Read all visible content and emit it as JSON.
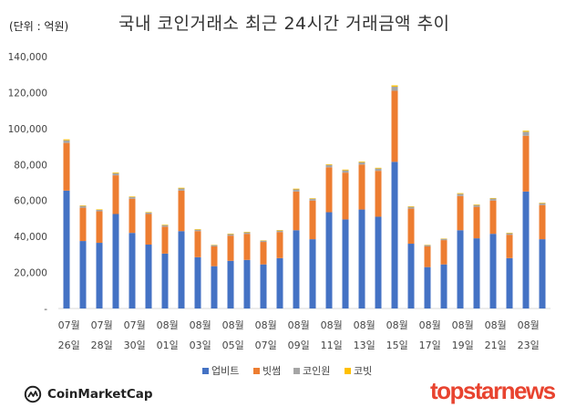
{
  "header": {
    "unit_label": "(단위 : 억원)",
    "title": "국내 코인거래소 최근 24시간 거래금액 추이"
  },
  "footer": {
    "coinmarketcap_label": "CoinMarketCap",
    "topstarnews_label": "topstarnews"
  },
  "chart_data": {
    "type": "bar",
    "stacked": true,
    "title": "국내 코인거래소 최근 24시간 거래금액 추이",
    "unit": "(단위 : 억원)",
    "categories": [
      "07월 26일",
      "07월 27일",
      "07월 28일",
      "07월 29일",
      "07월 30일",
      "07월 31일",
      "08월 01일",
      "08월 02일",
      "08월 03일",
      "08월 04일",
      "08월 05일",
      "08월 06일",
      "08월 07일",
      "08월 08일",
      "08월 09일",
      "08월 10일",
      "08월 11일",
      "08월 12일",
      "08월 13일",
      "08월 14일",
      "08월 15일",
      "08월 16일",
      "08월 17일",
      "08월 18일",
      "08월 19일",
      "08월 20일",
      "08월 21일",
      "08월 22일",
      "08월 23일",
      "08월 24일"
    ],
    "x_tick_labels": [
      {
        "month": "07월",
        "day": "26일"
      },
      {
        "month": "07월",
        "day": "28일"
      },
      {
        "month": "07월",
        "day": "30일"
      },
      {
        "month": "08월",
        "day": "01일"
      },
      {
        "month": "08월",
        "day": "03일"
      },
      {
        "month": "08월",
        "day": "05일"
      },
      {
        "month": "08월",
        "day": "07일"
      },
      {
        "month": "08월",
        "day": "09일"
      },
      {
        "month": "08월",
        "day": "11일"
      },
      {
        "month": "08월",
        "day": "13일"
      },
      {
        "month": "08월",
        "day": "15일"
      },
      {
        "month": "08월",
        "day": "17일"
      },
      {
        "month": "08월",
        "day": "19일"
      },
      {
        "month": "08월",
        "day": "21일"
      },
      {
        "month": "08월",
        "day": "23일"
      }
    ],
    "series": [
      {
        "name": "업비트",
        "color": "#4472c4",
        "values": [
          65500,
          37500,
          36500,
          52500,
          42000,
          35500,
          30500,
          43000,
          28500,
          23500,
          26500,
          27000,
          24500,
          28000,
          43500,
          38500,
          53500,
          49500,
          55000,
          51000,
          81500,
          36000,
          23000,
          24500,
          43500,
          39000,
          41500,
          28000,
          65000,
          38500
        ]
      },
      {
        "name": "빗썸",
        "color": "#ed7d31",
        "values": [
          26500,
          18500,
          17500,
          21500,
          19000,
          17000,
          15000,
          22500,
          14500,
          11000,
          14000,
          14500,
          12500,
          14500,
          21500,
          21500,
          25000,
          26000,
          25000,
          25500,
          39500,
          19500,
          11500,
          13500,
          19000,
          17500,
          18500,
          13000,
          31000,
          19000
        ]
      },
      {
        "name": "코인원",
        "color": "#a5a5a5",
        "values": [
          1500,
          1000,
          800,
          1200,
          1000,
          800,
          800,
          1200,
          800,
          700,
          800,
          800,
          700,
          800,
          1200,
          1000,
          1300,
          1300,
          1300,
          1300,
          2300,
          1000,
          700,
          700,
          1200,
          1000,
          1100,
          800,
          2200,
          1000
        ]
      },
      {
        "name": "코빗",
        "color": "#ffc000",
        "values": [
          500,
          300,
          300,
          400,
          300,
          300,
          300,
          400,
          300,
          200,
          300,
          300,
          200,
          300,
          400,
          300,
          400,
          400,
          400,
          400,
          700,
          300,
          200,
          200,
          400,
          300,
          300,
          300,
          600,
          300
        ]
      }
    ],
    "y_ticks": [
      "-",
      "20,000",
      "40,000",
      "60,000",
      "80,000",
      "100,000",
      "120,000",
      "140,000"
    ],
    "ylim": [
      0,
      140000
    ],
    "grid": false,
    "legend_position": "bottom"
  }
}
